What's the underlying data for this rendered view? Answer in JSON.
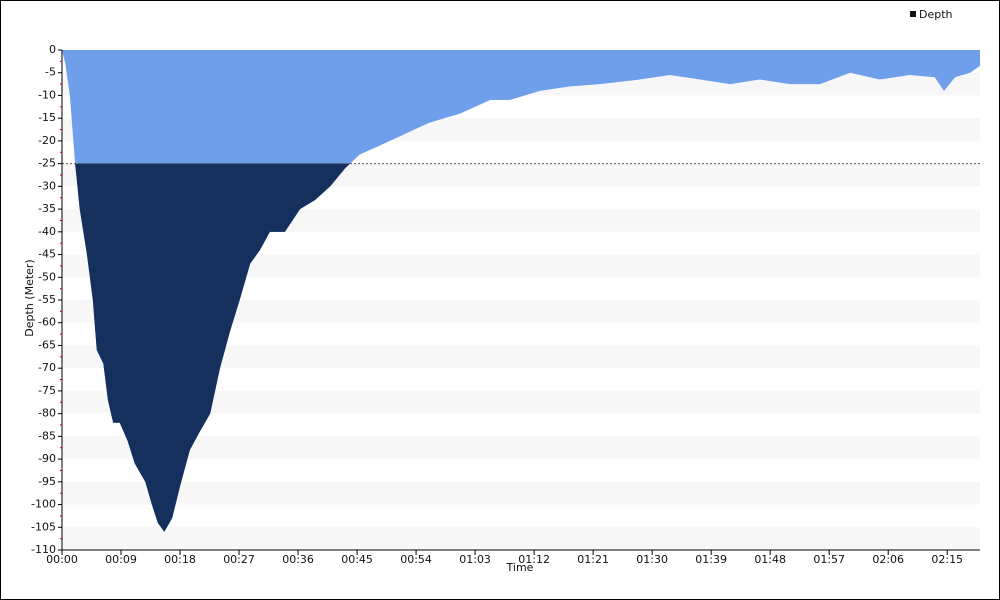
{
  "chart_data": {
    "type": "area",
    "x_label": "Time",
    "y_label": "Depth (Meter)",
    "x": [
      0,
      0.5,
      1.2,
      2.0,
      2.7,
      3.8,
      4.7,
      5.3,
      6.3,
      7.0,
      7.8,
      8.8,
      10.0,
      11.1,
      12.7,
      13.7,
      14.6,
      15.6,
      16.8,
      18.0,
      19.5,
      21.0,
      22.6,
      24.1,
      25.6,
      27.1,
      28.7,
      30.2,
      31.7,
      34.0,
      36.3,
      38.6,
      40.9,
      43.2,
      45.4,
      48.5,
      51.5,
      56.0,
      60.7,
      65.3,
      68.3,
      72.9,
      77.5,
      82.0,
      88.1,
      92.7,
      97.3,
      101.9,
      106.4,
      111.0,
      115.6,
      120.2,
      124.7,
      129.3,
      133.1,
      134.5,
      136.2,
      138.5,
      140.0
    ],
    "series": [
      {
        "name": "Depth",
        "color": "#6f9fea",
        "values": [
          0,
          -3,
          -10,
          -25,
          -35,
          -45,
          -55,
          -66,
          -69,
          -77,
          -82,
          -82,
          -86,
          -91,
          -95,
          -100,
          -104,
          -106,
          -103,
          -96,
          -88,
          -84,
          -80,
          -70,
          -62,
          -55,
          -47,
          -44,
          -40,
          -40,
          -35,
          -33,
          -30,
          -26,
          -23,
          -21,
          -19,
          -16,
          -14,
          -11,
          -11,
          -9,
          -8,
          -7.5,
          -6.5,
          -5.5,
          -6.5,
          -7.5,
          -6.5,
          -7.5,
          -7.5,
          -5,
          -6.5,
          -5.5,
          -6,
          -9,
          -6,
          -5,
          -3.5
        ]
      }
    ],
    "threshold": -25,
    "threshold_color": "#16305e",
    "xlim": [
      0,
      140
    ],
    "xticks": [
      {
        "value": 0,
        "label": "00:00"
      },
      {
        "value": 9,
        "label": "00:09"
      },
      {
        "value": 18,
        "label": "00:18"
      },
      {
        "value": 27,
        "label": "00:27"
      },
      {
        "value": 36,
        "label": "00:36"
      },
      {
        "value": 45,
        "label": "00:45"
      },
      {
        "value": 54,
        "label": "00:54"
      },
      {
        "value": 63,
        "label": "01:03"
      },
      {
        "value": 72,
        "label": "01:12"
      },
      {
        "value": 81,
        "label": "01:21"
      },
      {
        "value": 90,
        "label": "01:30"
      },
      {
        "value": 99,
        "label": "01:39"
      },
      {
        "value": 108,
        "label": "01:48"
      },
      {
        "value": 117,
        "label": "01:57"
      },
      {
        "value": 126,
        "label": "02:06"
      },
      {
        "value": 135,
        "label": "02:15"
      }
    ],
    "ylim": [
      -110,
      0
    ],
    "yticks": [
      0,
      -5,
      -10,
      -15,
      -20,
      -25,
      -30,
      -35,
      -40,
      -45,
      -50,
      -55,
      -60,
      -65,
      -70,
      -75,
      -80,
      -85,
      -90,
      -95,
      -100,
      -105,
      -110
    ],
    "legend": "top-right"
  }
}
